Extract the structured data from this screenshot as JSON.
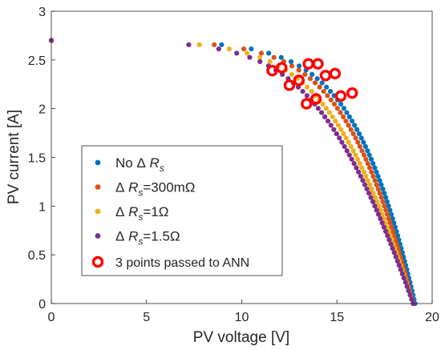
{
  "chart_data": {
    "type": "scatter",
    "xlabel": "PV voltage [V]",
    "ylabel": "PV current [A]",
    "xlim": [
      0,
      20
    ],
    "ylim": [
      0,
      3
    ],
    "x_ticks": [
      "0",
      "5",
      "10",
      "15",
      "20"
    ],
    "y_ticks": [
      "0",
      "0.5",
      "1",
      "1.5",
      "2",
      "2.5",
      "3"
    ],
    "grid": false,
    "legend_position": "bottom-left",
    "series": [
      {
        "name_parts": {
          "pre": "No ",
          "delta": "Δ",
          "sym": " R",
          "sub": "s",
          "post": ""
        },
        "color": "#0072BD",
        "voc": 19.1,
        "params": {
          "isc": 2.7,
          "a": 0.0002,
          "b": 0.5,
          "rs": 0
        }
      },
      {
        "name_parts": {
          "pre": "",
          "delta": "Δ",
          "sym": " R",
          "sub": "s",
          "post": "=300mΩ"
        },
        "color": "#D95319",
        "voc": 19.0,
        "params": {
          "isc": 2.7,
          "a": 0.0002,
          "b": 0.5,
          "rs": 0.3
        }
      },
      {
        "name_parts": {
          "pre": "",
          "delta": "Δ",
          "sym": " R",
          "sub": "s",
          "post": "=1Ω"
        },
        "color": "#EDB120",
        "voc": 19.0,
        "params": {
          "isc": 2.7,
          "a": 0.0002,
          "b": 0.5,
          "rs": 1.0
        }
      },
      {
        "name_parts": {
          "pre": "",
          "delta": "Δ",
          "sym": " R",
          "sub": "s",
          "post": "=1.5Ω"
        },
        "color": "#7E2F8E",
        "voc": 19.0,
        "params": {
          "isc": 2.7,
          "a": 0.0002,
          "b": 0.5,
          "rs": 1.5
        }
      }
    ],
    "ann_points": {
      "name": "3 points passed to ANN",
      "color": "#FF0000",
      "points": [
        [
          14.0,
          2.46
        ],
        [
          14.9,
          2.36
        ],
        [
          15.8,
          2.16
        ],
        [
          13.5,
          2.46
        ],
        [
          14.4,
          2.34
        ],
        [
          15.2,
          2.13
        ],
        [
          12.1,
          2.42
        ],
        [
          13.0,
          2.29
        ],
        [
          13.9,
          2.1
        ],
        [
          11.6,
          2.39
        ],
        [
          12.5,
          2.24
        ],
        [
          13.4,
          2.05
        ]
      ]
    }
  }
}
